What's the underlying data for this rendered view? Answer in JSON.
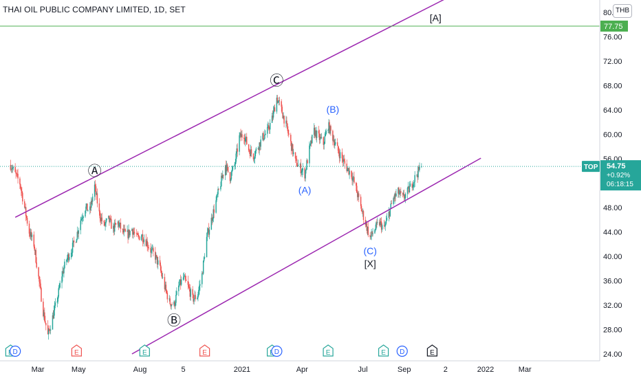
{
  "header": {
    "title": "THAI OIL PUBLIC COMPANY LIMITED, 1D, SET",
    "currency": "THB"
  },
  "colors": {
    "up": "#26a69a",
    "down": "#ef5350",
    "channel": "#9c27b0",
    "level_line": "#4caf50",
    "wave_dark": "#131722",
    "wave_blue": "#2962ff",
    "price_badge": "#26a69a",
    "earnings": "#e53935",
    "dividend": "#2962ff"
  },
  "chart_data": {
    "type": "candlestick",
    "ylim": [
      24,
      80
    ],
    "y_ticks": [
      "80.00",
      "76.00",
      "72.00",
      "68.00",
      "64.00",
      "60.00",
      "56.00",
      "52.00",
      "48.00",
      "44.00",
      "40.00",
      "36.00",
      "32.00",
      "28.00",
      "24.00"
    ],
    "x_ticks": [
      "Mar",
      "May",
      "Aug",
      "5",
      "2021",
      "Apr",
      "Jul",
      "Sep",
      "2",
      "2022",
      "Mar"
    ],
    "level_line": {
      "value": 77.75,
      "label": "77.75"
    },
    "current_price": {
      "value": 54.75,
      "symbol": "TOP",
      "price": "54.75",
      "change": "+0.92%",
      "countdown": "06:18:15"
    },
    "channel_lines": [
      {
        "from": [
          "2020-01-27",
          46.4
        ],
        "to": [
          "2021-11-05",
          82.4
        ]
      },
      {
        "from": [
          "2020-07-20",
          24.0
        ],
        "to": [
          "2021-12-25",
          56.1
        ]
      }
    ],
    "price_path": [
      [
        "2020-01-20",
        55.0
      ],
      [
        "2020-01-27",
        53.5
      ],
      [
        "2020-02-03",
        52.0
      ],
      [
        "2020-02-10",
        48.0
      ],
      [
        "2020-02-17",
        44.0
      ],
      [
        "2020-02-24",
        42.0
      ],
      [
        "2020-03-02",
        36.5
      ],
      [
        "2020-03-09",
        31.0
      ],
      [
        "2020-03-16",
        27.0
      ],
      [
        "2020-03-23",
        30.0
      ],
      [
        "2020-03-30",
        33.0
      ],
      [
        "2020-04-06",
        37.0
      ],
      [
        "2020-04-13",
        39.5
      ],
      [
        "2020-04-20",
        41.0
      ],
      [
        "2020-04-27",
        43.0
      ],
      [
        "2020-05-04",
        46.0
      ],
      [
        "2020-05-11",
        48.0
      ],
      [
        "2020-05-18",
        47.5
      ],
      [
        "2020-05-25",
        51.5
      ],
      [
        "2020-06-01",
        47.0
      ],
      [
        "2020-06-08",
        45.0
      ],
      [
        "2020-06-15",
        46.0
      ],
      [
        "2020-06-22",
        44.5
      ],
      [
        "2020-06-29",
        45.5
      ],
      [
        "2020-07-06",
        44.0
      ],
      [
        "2020-07-13",
        43.5
      ],
      [
        "2020-07-20",
        44.5
      ],
      [
        "2020-07-27",
        43.0
      ],
      [
        "2020-08-03",
        43.5
      ],
      [
        "2020-08-10",
        42.5
      ],
      [
        "2020-08-17",
        41.0
      ],
      [
        "2020-08-24",
        40.0
      ],
      [
        "2020-08-31",
        38.0
      ],
      [
        "2020-09-07",
        35.0
      ],
      [
        "2020-09-14",
        32.5
      ],
      [
        "2020-09-21",
        32.0
      ],
      [
        "2020-09-28",
        35.0
      ],
      [
        "2020-10-05",
        36.5
      ],
      [
        "2020-10-12",
        35.0
      ],
      [
        "2020-10-19",
        33.0
      ],
      [
        "2020-10-26",
        33.5
      ],
      [
        "2020-11-02",
        37.0
      ],
      [
        "2020-11-09",
        43.0
      ],
      [
        "2020-11-16",
        46.0
      ],
      [
        "2020-11-23",
        49.0
      ],
      [
        "2020-11-30",
        52.0
      ],
      [
        "2020-12-07",
        55.0
      ],
      [
        "2020-12-14",
        53.0
      ],
      [
        "2020-12-21",
        55.0
      ],
      [
        "2020-12-28",
        59.5
      ],
      [
        "2021-01-04",
        60.0
      ],
      [
        "2021-01-11",
        57.5
      ],
      [
        "2021-01-18",
        56.5
      ],
      [
        "2021-01-25",
        58.0
      ],
      [
        "2021-02-01",
        59.5
      ],
      [
        "2021-02-08",
        60.5
      ],
      [
        "2021-02-15",
        62.5
      ],
      [
        "2021-02-22",
        66.0
      ],
      [
        "2021-03-01",
        64.0
      ],
      [
        "2021-03-08",
        61.5
      ],
      [
        "2021-03-15",
        58.5
      ],
      [
        "2021-03-22",
        55.5
      ],
      [
        "2021-03-29",
        54.5
      ],
      [
        "2021-04-05",
        53.5
      ],
      [
        "2021-04-12",
        57.5
      ],
      [
        "2021-04-19",
        60.5
      ],
      [
        "2021-04-26",
        59.5
      ],
      [
        "2021-05-03",
        58.5
      ],
      [
        "2021-05-10",
        61.5
      ],
      [
        "2021-05-17",
        59.5
      ],
      [
        "2021-05-24",
        57.5
      ],
      [
        "2021-05-31",
        56.0
      ],
      [
        "2021-06-07",
        54.5
      ],
      [
        "2021-06-14",
        53.5
      ],
      [
        "2021-06-21",
        51.0
      ],
      [
        "2021-06-28",
        48.0
      ],
      [
        "2021-07-05",
        45.5
      ],
      [
        "2021-07-12",
        43.0
      ],
      [
        "2021-07-19",
        44.5
      ],
      [
        "2021-07-26",
        45.5
      ],
      [
        "2021-08-02",
        44.5
      ],
      [
        "2021-08-09",
        47.0
      ],
      [
        "2021-08-16",
        49.5
      ],
      [
        "2021-08-23",
        50.5
      ],
      [
        "2021-08-30",
        49.5
      ],
      [
        "2021-09-06",
        50.5
      ],
      [
        "2021-09-13",
        52.0
      ],
      [
        "2021-09-20",
        53.5
      ],
      [
        "2021-09-27",
        54.75
      ]
    ],
    "wave_labels": [
      {
        "text": "Ⓐ",
        "date": "2020-05-25",
        "value": 53.8,
        "style": "dark"
      },
      {
        "text": "Ⓑ",
        "date": "2020-09-21",
        "value": 29.3,
        "style": "dark"
      },
      {
        "text": "Ⓒ",
        "date": "2021-02-22",
        "value": 68.6,
        "style": "dark"
      },
      {
        "text": "(A)",
        "date": "2021-04-05",
        "value": 50.9,
        "style": "blue"
      },
      {
        "text": "(B)",
        "date": "2021-05-17",
        "value": 64.1,
        "style": "blue"
      },
      {
        "text": "(C)",
        "date": "2021-07-12",
        "value": 40.9,
        "style": "blue"
      },
      {
        "text": "[X]",
        "date": "2021-07-12",
        "value": 38.8,
        "style": "dark"
      },
      {
        "text": "[A]",
        "date": "2021-10-18",
        "value": 79.1,
        "style": "dark"
      }
    ],
    "events": [
      {
        "type": "E",
        "date": "2020-01-20"
      },
      {
        "type": "D",
        "date": "2020-01-27"
      },
      {
        "type": "E",
        "date": "2020-04-28"
      },
      {
        "type": "E",
        "date": "2020-08-08"
      },
      {
        "type": "E",
        "date": "2020-11-06"
      },
      {
        "type": "E",
        "date": "2021-02-15"
      },
      {
        "type": "D",
        "date": "2021-02-22"
      },
      {
        "type": "E",
        "date": "2021-05-10"
      },
      {
        "type": "E",
        "date": "2021-08-01"
      },
      {
        "type": "D",
        "date": "2021-08-29"
      },
      {
        "type": "E",
        "date": "2021-10-13"
      }
    ]
  }
}
